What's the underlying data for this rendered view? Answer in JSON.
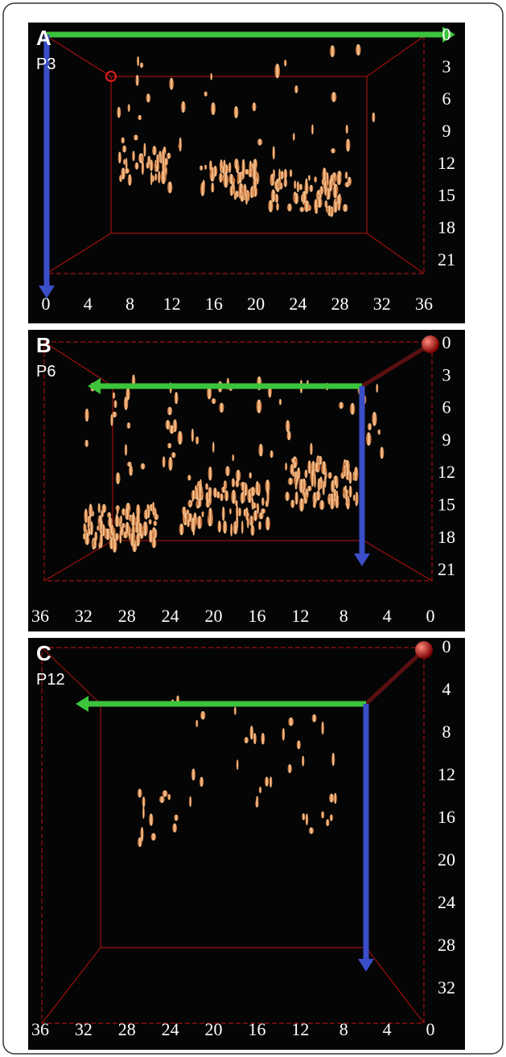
{
  "panels": [
    {
      "label": "A",
      "sublabel": "P3",
      "xticks": [
        "0",
        "4",
        "8",
        "12",
        "16",
        "20",
        "24",
        "28",
        "32",
        "36"
      ],
      "yticks": [
        "0",
        "3",
        "6",
        "9",
        "12",
        "15",
        "18",
        "21"
      ]
    },
    {
      "label": "B",
      "sublabel": "P6",
      "xticks": [
        "36",
        "32",
        "28",
        "24",
        "20",
        "16",
        "12",
        "8",
        "4",
        "0"
      ],
      "yticks": [
        "0",
        "3",
        "6",
        "9",
        "12",
        "15",
        "18",
        "21"
      ]
    },
    {
      "label": "C",
      "sublabel": "P12",
      "xticks": [
        "36",
        "32",
        "28",
        "24",
        "20",
        "16",
        "12",
        "8",
        "4",
        "0"
      ],
      "yticks": [
        "0",
        "4",
        "8",
        "12",
        "16",
        "20",
        "24",
        "28",
        "32"
      ]
    }
  ]
}
